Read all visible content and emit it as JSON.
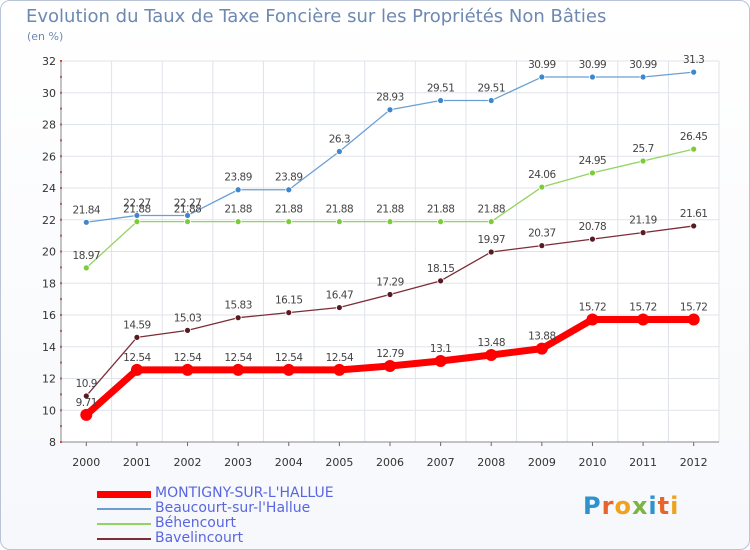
{
  "chart_data": {
    "type": "line",
    "title": "Evolution du Taux de Taxe Foncière sur les Propriétés Non Bâties",
    "unit_label": "(en %)",
    "x": [
      "2000",
      "2001",
      "2002",
      "2003",
      "2004",
      "2005",
      "2006",
      "2007",
      "2008",
      "2009",
      "2010",
      "2011",
      "2012"
    ],
    "ylim": [
      8,
      32
    ],
    "yticks": [
      "8",
      "10",
      "12",
      "14",
      "16",
      "18",
      "20",
      "22",
      "24",
      "26",
      "28",
      "30",
      "32"
    ],
    "grid": true,
    "legend_position": "bottom-left",
    "series": [
      {
        "name": "MONTIGNY-SUR-L'HALLUE",
        "color": "#ff0000",
        "marker_color": "#ff0000",
        "emphasis": true,
        "values": [
          9.71,
          12.54,
          12.54,
          12.54,
          12.54,
          12.54,
          12.79,
          13.1,
          13.48,
          13.88,
          15.72,
          15.72,
          15.72
        ],
        "labels": [
          "9.71",
          "12.54",
          "12.54",
          "12.54",
          "12.54",
          "12.54",
          "12.79",
          "13.1",
          "13.48",
          "13.88",
          "15.72",
          "15.72",
          "15.72"
        ]
      },
      {
        "name": "Beaucourt-sur-l'Hallue",
        "color": "#6b9fd4",
        "marker_color": "#3f86cc",
        "values": [
          21.84,
          22.27,
          22.27,
          23.89,
          23.89,
          26.3,
          28.93,
          29.51,
          29.51,
          30.99,
          30.99,
          30.99,
          31.3
        ],
        "labels": [
          "21.84",
          "22.27",
          "22.27",
          "23.89",
          "23.89",
          "26.3",
          "28.93",
          "29.51",
          "29.51",
          "30.99",
          "30.99",
          "30.99",
          "31.3"
        ]
      },
      {
        "name": "Béhencourt",
        "color": "#93d35f",
        "marker_color": "#7ccb39",
        "values": [
          18.97,
          21.88,
          21.88,
          21.88,
          21.88,
          21.88,
          21.88,
          21.88,
          21.88,
          24.06,
          24.95,
          25.7,
          26.45
        ],
        "labels": [
          "18.97",
          "21.88",
          "21.88",
          "21.88",
          "21.88",
          "21.88",
          "21.88",
          "21.88",
          "21.88",
          "24.06",
          "24.95",
          "25.7",
          "26.45"
        ]
      },
      {
        "name": "Bavelincourt",
        "color": "#7c2d35",
        "marker_color": "#5a1a22",
        "values": [
          10.9,
          14.59,
          15.03,
          15.83,
          16.15,
          16.47,
          17.29,
          18.15,
          19.97,
          20.37,
          20.78,
          21.19,
          21.61
        ],
        "labels": [
          "10.9",
          "14.59",
          "15.03",
          "15.83",
          "16.15",
          "16.47",
          "17.29",
          "18.15",
          "19.97",
          "20.37",
          "20.78",
          "21.19",
          "21.61"
        ]
      }
    ]
  },
  "brand": {
    "text": "Proxiti",
    "letter_colors": [
      "#2c93cf",
      "#e8642a",
      "#f0a21e",
      "#7cb342",
      "#2c93cf",
      "#e8642a",
      "#f0a21e"
    ]
  }
}
